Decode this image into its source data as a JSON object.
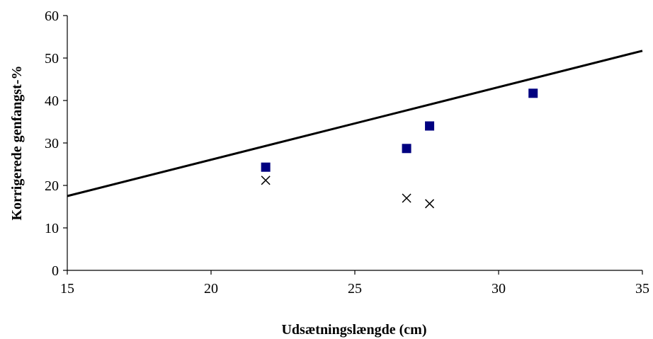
{
  "chart_data": {
    "type": "scatter",
    "title": "",
    "xlabel": "Udsætningslængde (cm)",
    "ylabel": "Korrigerede genfangst-%",
    "xlim": [
      15,
      35
    ],
    "ylim": [
      0,
      60
    ],
    "x_ticks": [
      15,
      20,
      25,
      30,
      35
    ],
    "y_ticks": [
      0,
      10,
      20,
      30,
      40,
      50,
      60
    ],
    "grid": false,
    "series": [
      {
        "marker": "square",
        "color": "#000080",
        "points": [
          {
            "x": 21.9,
            "y": 24.3
          },
          {
            "x": 26.8,
            "y": 28.7
          },
          {
            "x": 27.6,
            "y": 34.0
          },
          {
            "x": 31.2,
            "y": 41.7
          }
        ]
      },
      {
        "marker": "x",
        "color": "#000000",
        "points": [
          {
            "x": 21.9,
            "y": 21.2
          },
          {
            "x": 26.8,
            "y": 17.0
          },
          {
            "x": 27.6,
            "y": 15.7
          }
        ]
      },
      {
        "marker": "line",
        "color": "#000000",
        "points": [
          {
            "x": 15,
            "y": 17.5
          },
          {
            "x": 35,
            "y": 51.7
          }
        ]
      }
    ]
  }
}
